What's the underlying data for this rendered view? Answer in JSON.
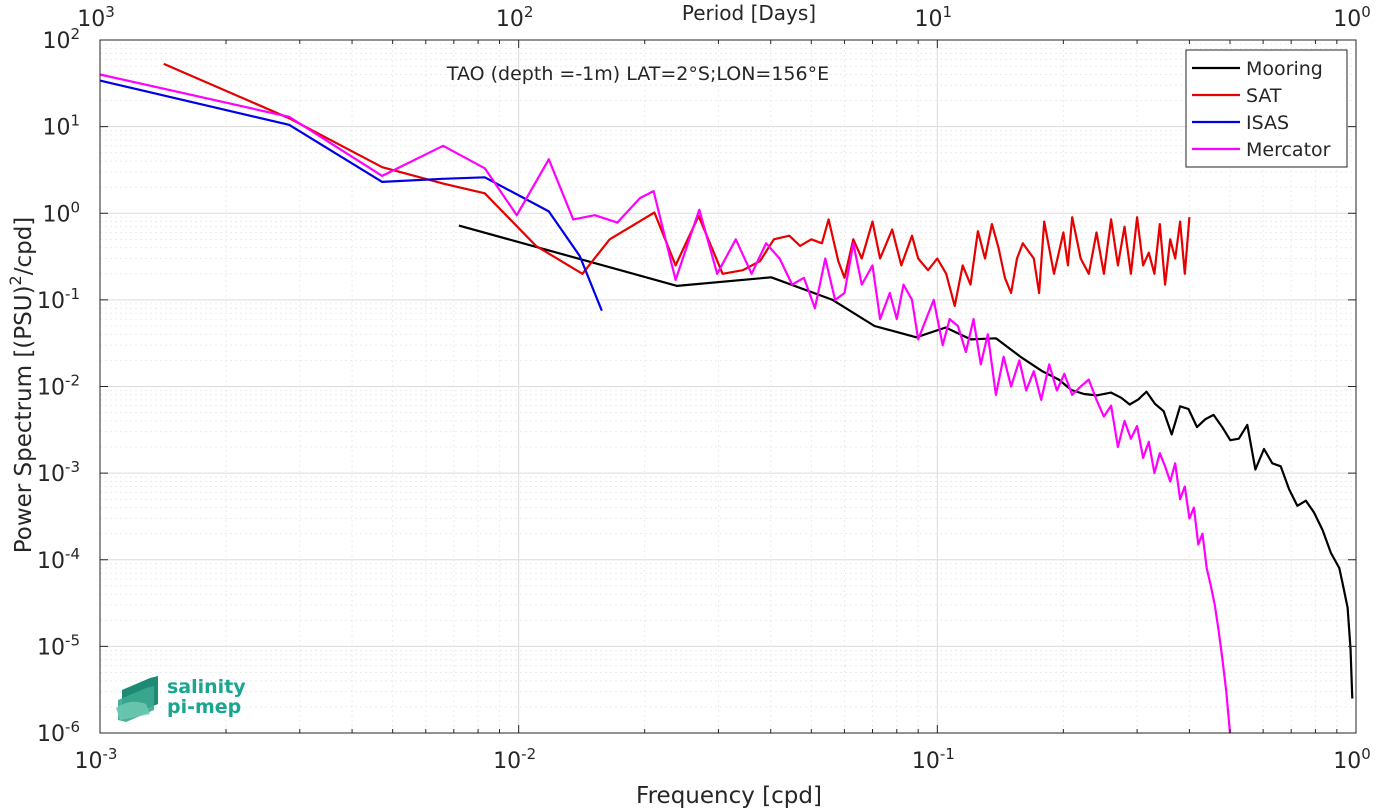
{
  "chart_data": {
    "type": "line",
    "title": "TAO (depth =-1m) LAT=2°S;LON=156°E",
    "xlabel": "Frequency [cpd]",
    "ylabel": "Power Spectrum [(PSU)²/cpd]",
    "top_axis_label": "Period [Days]",
    "x_scale": "log",
    "y_scale": "log",
    "xlim": [
      0.001,
      1
    ],
    "ylim": [
      1e-06,
      100
    ],
    "grid": true,
    "legend_position": "top-right",
    "x_ticks": [
      {
        "base": "10",
        "exp": "-3",
        "value": 0.001
      },
      {
        "base": "10",
        "exp": "-2",
        "value": 0.01
      },
      {
        "base": "10",
        "exp": "-1",
        "value": 0.1
      },
      {
        "base": "10",
        "exp": "0",
        "value": 1
      }
    ],
    "top_ticks": [
      {
        "base": "10",
        "exp": "3",
        "value": 0.001
      },
      {
        "base": "10",
        "exp": "2",
        "value": 0.01
      },
      {
        "base": "10",
        "exp": "1",
        "value": 0.1
      },
      {
        "base": "10",
        "exp": "0",
        "value": 1
      }
    ],
    "y_ticks": [
      {
        "base": "10",
        "exp": "2",
        "value": 100
      },
      {
        "base": "10",
        "exp": "1",
        "value": 10
      },
      {
        "base": "10",
        "exp": "0",
        "value": 1
      },
      {
        "base": "10",
        "exp": "-1",
        "value": 0.1
      },
      {
        "base": "10",
        "exp": "-2",
        "value": 0.01
      },
      {
        "base": "10",
        "exp": "-3",
        "value": 0.001
      },
      {
        "base": "10",
        "exp": "-4",
        "value": 0.0001
      },
      {
        "base": "10",
        "exp": "-5",
        "value": 1e-05
      },
      {
        "base": "10",
        "exp": "-6",
        "value": 1e-06
      }
    ],
    "series": [
      {
        "name": "Mooring",
        "color": "#000000",
        "x": [
          0.0072,
          0.0239,
          0.0401,
          0.0562,
          0.0708,
          0.0891,
          0.1047,
          0.1202,
          0.138,
          0.158,
          0.178,
          0.195,
          0.209,
          0.224,
          0.24,
          0.26,
          0.275,
          0.288,
          0.302,
          0.316,
          0.331,
          0.347,
          0.363,
          0.38,
          0.398,
          0.417,
          0.437,
          0.457,
          0.479,
          0.501,
          0.525,
          0.55,
          0.575,
          0.603,
          0.631,
          0.661,
          0.692,
          0.724,
          0.759,
          0.794,
          0.832,
          0.871,
          0.912,
          0.93,
          0.955,
          0.97,
          0.98
        ],
        "y": [
          0.72,
          0.145,
          0.182,
          0.1,
          0.05,
          0.037,
          0.048,
          0.035,
          0.036,
          0.022,
          0.015,
          0.012,
          0.0091,
          0.0082,
          0.0079,
          0.0085,
          0.0074,
          0.0062,
          0.0071,
          0.0087,
          0.0063,
          0.0052,
          0.0028,
          0.0059,
          0.0055,
          0.0034,
          0.0042,
          0.0047,
          0.0034,
          0.0024,
          0.0025,
          0.0036,
          0.0011,
          0.0019,
          0.0013,
          0.0012,
          0.00065,
          0.00042,
          0.00048,
          0.00035,
          0.00022,
          0.00012,
          8e-05,
          5.2e-05,
          2.8e-05,
          9.5e-06,
          2.5e-06
        ]
      },
      {
        "name": "SAT",
        "color": "#e60000",
        "x": [
          0.00142,
          0.00283,
          0.00472,
          0.0066,
          0.0083,
          0.011,
          0.0142,
          0.0165,
          0.0211,
          0.0237,
          0.0269,
          0.0307,
          0.0343,
          0.0377,
          0.0407,
          0.0443,
          0.047,
          0.05,
          0.053,
          0.055,
          0.058,
          0.06,
          0.063,
          0.066,
          0.07,
          0.073,
          0.078,
          0.082,
          0.087,
          0.09,
          0.095,
          0.1,
          0.105,
          0.11,
          0.115,
          0.12,
          0.125,
          0.13,
          0.135,
          0.14,
          0.145,
          0.15,
          0.155,
          0.16,
          0.17,
          0.175,
          0.18,
          0.19,
          0.2,
          0.205,
          0.21,
          0.22,
          0.23,
          0.24,
          0.25,
          0.26,
          0.27,
          0.28,
          0.29,
          0.3,
          0.31,
          0.32,
          0.33,
          0.34,
          0.35,
          0.36,
          0.37,
          0.38,
          0.39,
          0.4
        ],
        "y": [
          53,
          12.5,
          3.4,
          2.2,
          1.7,
          0.42,
          0.2,
          0.5,
          1.02,
          0.25,
          0.93,
          0.2,
          0.22,
          0.28,
          0.5,
          0.55,
          0.42,
          0.5,
          0.45,
          0.85,
          0.28,
          0.18,
          0.5,
          0.3,
          0.8,
          0.3,
          0.65,
          0.25,
          0.55,
          0.3,
          0.22,
          0.3,
          0.2,
          0.085,
          0.25,
          0.15,
          0.62,
          0.3,
          0.75,
          0.4,
          0.18,
          0.12,
          0.3,
          0.45,
          0.3,
          0.12,
          0.8,
          0.2,
          0.6,
          0.25,
          0.9,
          0.3,
          0.2,
          0.6,
          0.2,
          0.85,
          0.25,
          0.7,
          0.2,
          0.9,
          0.25,
          0.35,
          0.2,
          0.75,
          0.15,
          0.5,
          0.3,
          0.8,
          0.2,
          0.9
        ]
      },
      {
        "name": "ISAS",
        "color": "#0000e6",
        "x": [
          0.001,
          0.00283,
          0.00472,
          0.0066,
          0.0083,
          0.0118,
          0.014,
          0.0158
        ],
        "y": [
          34,
          10.5,
          2.3,
          2.5,
          2.6,
          1.05,
          0.32,
          0.075
        ]
      },
      {
        "name": "Mercator",
        "color": "#ff00ff",
        "x": [
          0.001,
          0.00283,
          0.00472,
          0.0066,
          0.0083,
          0.0099,
          0.0118,
          0.0135,
          0.0152,
          0.0172,
          0.0195,
          0.021,
          0.0237,
          0.027,
          0.0298,
          0.033,
          0.036,
          0.039,
          0.042,
          0.045,
          0.048,
          0.051,
          0.054,
          0.057,
          0.06,
          0.063,
          0.066,
          0.07,
          0.073,
          0.077,
          0.08,
          0.083,
          0.087,
          0.09,
          0.094,
          0.098,
          0.103,
          0.107,
          0.112,
          0.117,
          0.122,
          0.127,
          0.132,
          0.138,
          0.144,
          0.15,
          0.157,
          0.163,
          0.17,
          0.177,
          0.185,
          0.193,
          0.201,
          0.21,
          0.22,
          0.23,
          0.24,
          0.25,
          0.26,
          0.27,
          0.28,
          0.29,
          0.3,
          0.31,
          0.32,
          0.33,
          0.34,
          0.35,
          0.36,
          0.37,
          0.38,
          0.39,
          0.4,
          0.41,
          0.42,
          0.43,
          0.44,
          0.45,
          0.46,
          0.47,
          0.48,
          0.49,
          0.5
        ],
        "y": [
          40,
          13,
          2.7,
          6,
          3.3,
          0.95,
          4.2,
          0.85,
          0.95,
          0.78,
          1.5,
          1.8,
          0.17,
          1.1,
          0.2,
          0.5,
          0.2,
          0.45,
          0.3,
          0.15,
          0.18,
          0.08,
          0.3,
          0.1,
          0.12,
          0.45,
          0.15,
          0.25,
          0.06,
          0.12,
          0.06,
          0.15,
          0.1,
          0.035,
          0.06,
          0.1,
          0.03,
          0.06,
          0.05,
          0.025,
          0.06,
          0.018,
          0.04,
          0.008,
          0.022,
          0.01,
          0.02,
          0.009,
          0.015,
          0.007,
          0.018,
          0.009,
          0.014,
          0.008,
          0.01,
          0.012,
          0.007,
          0.0045,
          0.006,
          0.002,
          0.004,
          0.0025,
          0.0035,
          0.0015,
          0.0023,
          0.001,
          0.0017,
          0.0012,
          0.0008,
          0.0013,
          0.0005,
          0.0007,
          0.0003,
          0.0004,
          0.00015,
          0.0002,
          8e-05,
          5e-05,
          3e-05,
          1.5e-05,
          7e-06,
          3e-06,
          1e-06
        ]
      }
    ]
  },
  "logo": {
    "line1": "salinity",
    "line2": "pi-mep"
  }
}
